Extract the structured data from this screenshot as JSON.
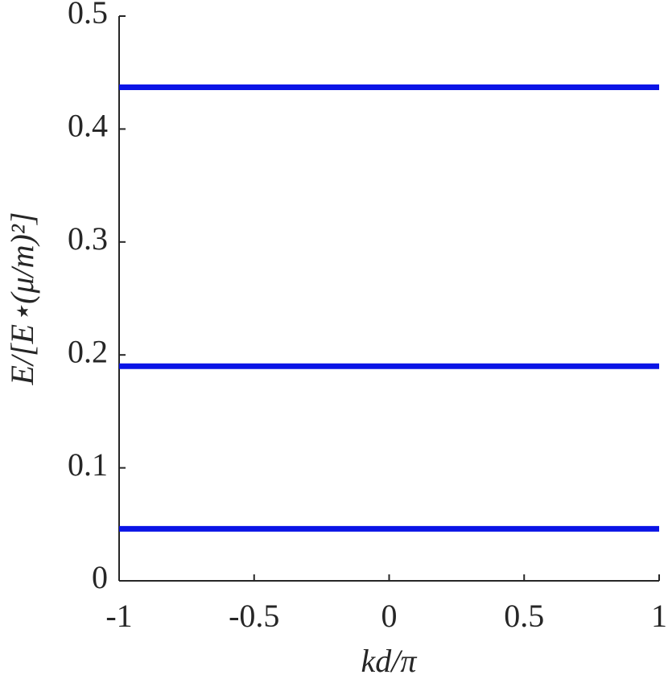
{
  "chart_data": {
    "type": "line",
    "x_label": "kd/π",
    "y_label": "E/[E⋆(μ/m)²]",
    "x": [
      -1,
      1
    ],
    "series": [
      {
        "color": "#0a14e6",
        "values": [
          0.437,
          0.437
        ]
      },
      {
        "color": "#0a14e6",
        "values": [
          0.19,
          0.19
        ]
      },
      {
        "color": "#0a14e6",
        "values": [
          0.046,
          0.046
        ]
      }
    ],
    "xlim": [
      -1,
      1
    ],
    "xticks": [
      -1,
      -0.5,
      0,
      0.5,
      1
    ],
    "ylim": [
      0,
      0.5
    ],
    "yticks": [
      0,
      0.1,
      0.2,
      0.3,
      0.4,
      0.5
    ],
    "grid": false
  }
}
